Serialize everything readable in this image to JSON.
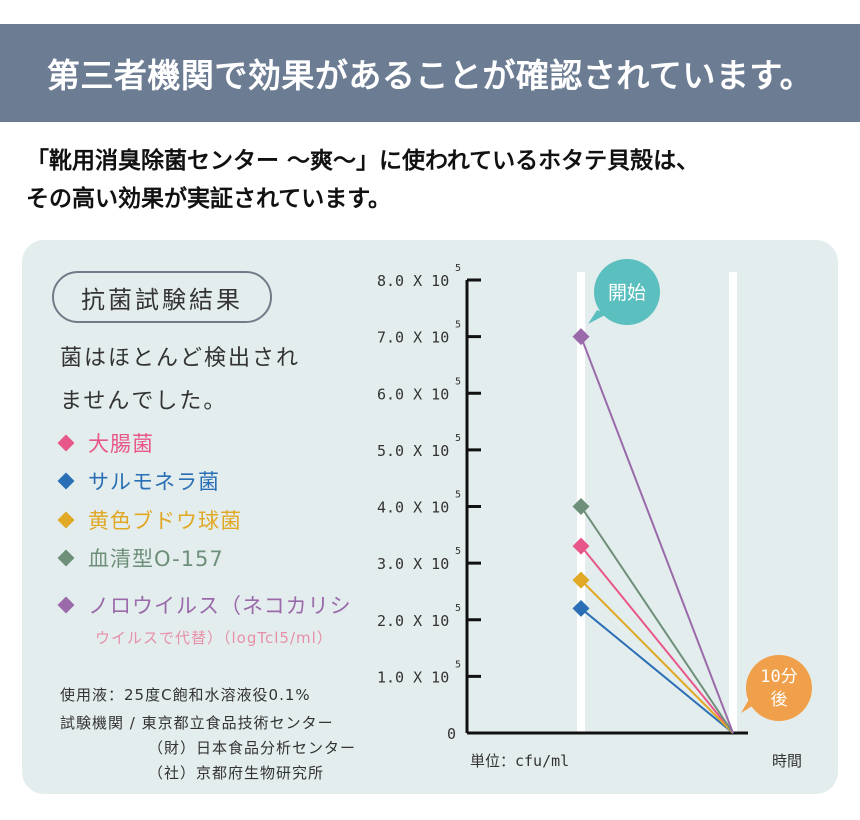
{
  "banner_title": "第三者機関で効果があることが確認されています。",
  "intro": {
    "line1": "「靴用消臭除菌センター ～爽～」に使われているホタテ貝殻は、",
    "line2": "その高い効果が実証されています。"
  },
  "panel": {
    "result_title": "抗菌試験結果",
    "lead_line1": "菌はほとんど検出され",
    "lead_line2": "ませんでした。",
    "legend_note": "ウイルスで代替）（logTcl5/ml）",
    "conditions": {
      "solution": "使用液：25度C飽和水溶液役0.1%",
      "institution_label": "試験機関 / 東京都立食品技術センター",
      "institution2": "（財）日本食品分析センター",
      "institution3": "（社）京都府生物研究所"
    }
  },
  "colors": {
    "banner": "#6c7c93",
    "panel": "#e4eded",
    "start_bubble": "#5bbfbf",
    "end_bubble": "#f0a04b"
  },
  "chart_data": {
    "type": "line",
    "x_categories": [
      "開始",
      "10分後"
    ],
    "xlabel": "時間",
    "ylabel": "単位：cfu/ml",
    "y_tick_labels": [
      "0",
      "1.0 X 10",
      "2.0 X 10",
      "3.0 X 10",
      "4.0 X 10",
      "5.0 X 10",
      "6.0 X 10",
      "7.0 X 10",
      "8.0 X 10"
    ],
    "y_tick_exponent": "5",
    "ylim": [
      0,
      800000
    ],
    "series": [
      {
        "name": "大腸菌",
        "color": "#e8578a",
        "values": [
          330000,
          0
        ]
      },
      {
        "name": "サルモネラ菌",
        "color": "#2a6fb5",
        "values": [
          220000,
          0
        ]
      },
      {
        "name": "黄色ブドウ球菌",
        "color": "#e0a825",
        "values": [
          270000,
          0
        ]
      },
      {
        "name": "血清型O-157",
        "color": "#6e8f79",
        "values": [
          400000,
          0
        ]
      },
      {
        "name": "ノロウイルス（ネコカリシ",
        "color": "#9a6aaa",
        "values": [
          700000,
          0
        ]
      }
    ]
  }
}
